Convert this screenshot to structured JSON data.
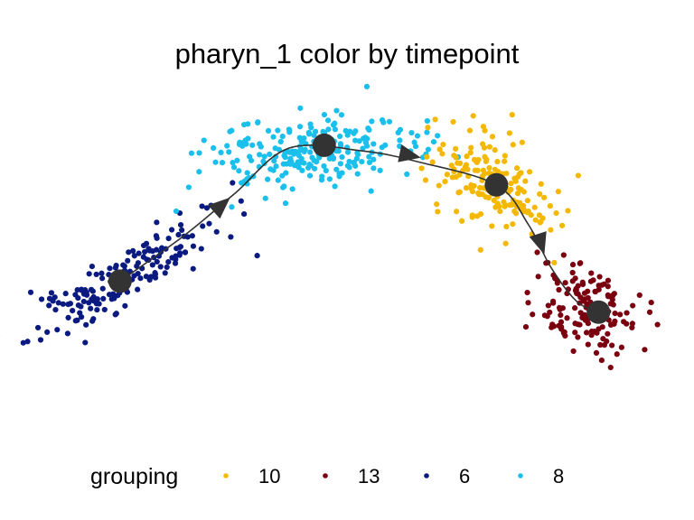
{
  "chart_data": {
    "type": "scatter",
    "title": "pharyn_1 color by timepoint",
    "xlabel": "",
    "ylabel": "",
    "xlim": [
      0,
      10
    ],
    "ylim": [
      0,
      6
    ],
    "axes_visible": false,
    "grid": false,
    "legend": {
      "title": "grouping",
      "position": "bottom",
      "entries": [
        "10",
        "13",
        "6",
        "8"
      ]
    },
    "colors": {
      "10": "#F5B800",
      "13": "#7A0010",
      "6": "#0A1A80",
      "8": "#1AC0EB",
      "trajectory": "#333333"
    },
    "clusters": [
      {
        "group": "6",
        "n": 170,
        "center": [
          1.45,
          2.55
        ],
        "sd_major": 0.82,
        "sd_minor": 0.2,
        "angle_deg": 36,
        "seed": 11
      },
      {
        "group": "8",
        "n": 230,
        "center": [
          4.35,
          4.75
        ],
        "sd_major": 0.85,
        "sd_minor": 0.32,
        "angle_deg": 8,
        "seed": 23
      },
      {
        "group": "10",
        "n": 170,
        "center": [
          7.3,
          4.2
        ],
        "sd_major": 0.55,
        "sd_minor": 0.35,
        "angle_deg": -42,
        "seed": 37
      },
      {
        "group": "13",
        "n": 150,
        "center": [
          8.7,
          2.05
        ],
        "sd_major": 0.45,
        "sd_minor": 0.32,
        "angle_deg": -45,
        "seed": 53
      }
    ],
    "outliers": [
      {
        "group": "6",
        "x": 3.55,
        "y": 2.95
      },
      {
        "group": "6",
        "x": 0.0,
        "y": 2.3
      },
      {
        "group": "10",
        "x": 7.05,
        "y": 3.05
      },
      {
        "group": "13",
        "x": 8.95,
        "y": 1.1
      }
    ],
    "trajectory": {
      "path": [
        [
          1.4,
          2.5
        ],
        [
          2.4,
          3.3
        ],
        [
          3.2,
          4.05
        ],
        [
          4.05,
          4.85
        ],
        [
          5.2,
          4.8
        ],
        [
          6.1,
          4.6
        ],
        [
          7.3,
          4.2
        ],
        [
          7.8,
          3.5
        ],
        [
          8.15,
          2.75
        ],
        [
          8.55,
          2.15
        ],
        [
          8.9,
          1.95
        ]
      ],
      "nodes": [
        [
          1.4,
          2.5
        ],
        [
          4.6,
          4.9
        ],
        [
          7.3,
          4.2
        ],
        [
          8.9,
          1.95
        ]
      ],
      "arrows": [
        {
          "at": [
            3.0,
            3.85
          ],
          "dir": [
            0.75,
            0.66
          ]
        },
        {
          "at": [
            5.95,
            4.72
          ],
          "dir": [
            0.98,
            -0.2
          ]
        },
        {
          "at": [
            8.0,
            3.15
          ],
          "dir": [
            0.3,
            -0.95
          ]
        }
      ]
    }
  }
}
